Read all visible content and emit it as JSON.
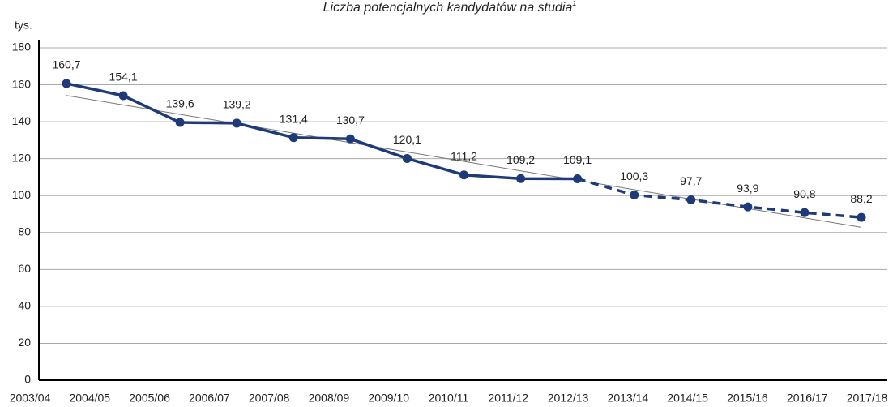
{
  "chart_data": {
    "type": "line",
    "title": "Liczba potencjalnych kandydatów na studia",
    "title_superscript": "1",
    "y_label": "tys.",
    "categories": [
      "2003/04",
      "2004/05",
      "2005/06",
      "2006/07",
      "2007/08",
      "2008/09",
      "2009/10",
      "2010/11",
      "2011/12",
      "2012/13",
      "2013/14",
      "2014/15",
      "2015/16",
      "2016/17",
      "2017/18"
    ],
    "series": [
      {
        "color": "#1f3a78",
        "values": [
          160.7,
          154.1,
          139.6,
          139.2,
          131.4,
          130.7,
          120.1,
          111.2,
          109.2,
          109.1,
          100.3,
          97.7,
          93.9,
          90.8,
          88.2
        ],
        "value_labels": [
          "160,7",
          "154,1",
          "139,6",
          "139,2",
          "131,4",
          "130,7",
          "120,1",
          "111,2",
          "109,2",
          "109,1",
          "100,3",
          "97,7",
          "93,9",
          "90,8",
          "88,2"
        ],
        "dashed_from_index": 9
      }
    ],
    "trendline": {
      "color": "#777777",
      "start": 154.2,
      "end": 82.8
    },
    "ylim": [
      0,
      180
    ],
    "yticks": [
      0,
      20,
      40,
      60,
      80,
      100,
      120,
      140,
      160,
      180
    ],
    "grid": true
  }
}
